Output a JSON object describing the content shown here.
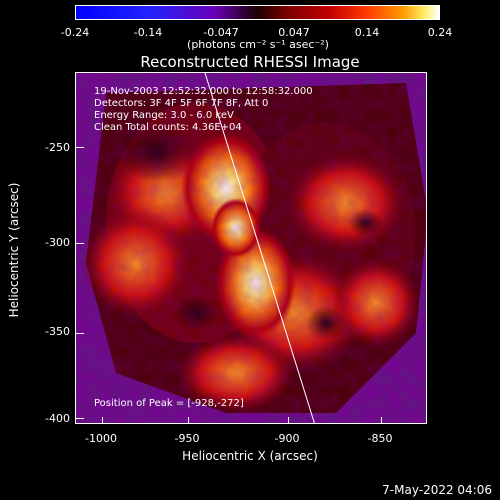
{
  "colorbar": {
    "ticks": [
      "-0.24",
      "-0.14",
      "-0.047",
      "0.047",
      "0.14",
      "0.24"
    ],
    "units": "(photons cm⁻² s⁻¹ asec⁻²)"
  },
  "plot": {
    "title": "Reconstructed RHESSI Image",
    "annotations": {
      "line1": "19-Nov-2003 12:52:32.000 to 12:58:32.000",
      "line2": "Detectors: 3F 4F 5F 6F 7F 8F, Att 0",
      "line3": "Energy Range: 3.0 - 6.0 keV",
      "line4": "Clean     Total counts: 4.36E+04",
      "peak": "Position of Peak = [-928,-272]"
    },
    "ylabel": "Heliocentric Y (arcsec)",
    "xlabel": "Heliocentric X (arcsec)",
    "yticks": [
      "-250",
      "-300",
      "-350",
      "-400"
    ],
    "xticks": [
      "-1000",
      "-950",
      "-900",
      "-850"
    ]
  },
  "timestamp": "7-May-2022 04:06"
}
